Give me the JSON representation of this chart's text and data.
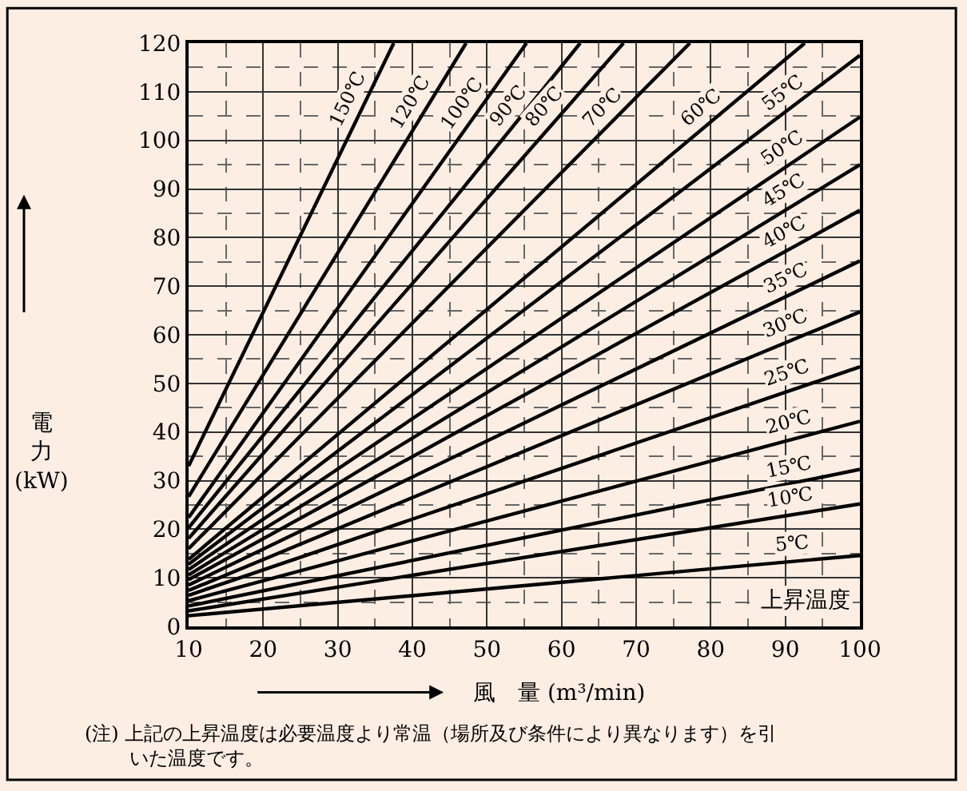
{
  "chart_data": {
    "type": "line",
    "xlabel": "風　量 (m³/min)",
    "ylabel": "電力(kW)",
    "legend_title": "上昇温度",
    "xlim": [
      10,
      100
    ],
    "ylim": [
      0,
      120
    ],
    "xticks": [
      10,
      20,
      30,
      40,
      50,
      60,
      70,
      80,
      90,
      100
    ],
    "yticks": [
      0,
      10,
      20,
      30,
      40,
      50,
      60,
      70,
      80,
      90,
      100,
      110,
      120
    ],
    "grid": true,
    "legend": false,
    "marker": "none",
    "line_style": "solid",
    "annotations": [
      "(注) 上記の上昇温度は必要温度より常温（場所及び条件により異なります）を引いた温度です。"
    ],
    "series": [
      {
        "name": "5℃",
        "color": "#000000",
        "x": [
          10,
          100
        ],
        "values": [
          2.2,
          14.6
        ]
      },
      {
        "name": "10℃",
        "color": "#000000",
        "x": [
          10,
          100
        ],
        "values": [
          3.2,
          25.2
        ]
      },
      {
        "name": "15℃",
        "color": "#000000",
        "x": [
          10,
          100
        ],
        "values": [
          4.2,
          32.3
        ]
      },
      {
        "name": "20℃",
        "color": "#000000",
        "x": [
          10,
          100
        ],
        "values": [
          5.3,
          42.2
        ]
      },
      {
        "name": "25℃",
        "color": "#000000",
        "x": [
          10,
          100
        ],
        "values": [
          6.4,
          53.4
        ]
      },
      {
        "name": "30℃",
        "color": "#000000",
        "x": [
          10,
          100
        ],
        "values": [
          7.4,
          64.7
        ]
      },
      {
        "name": "35℃",
        "color": "#000000",
        "x": [
          10,
          100
        ],
        "values": [
          8.5,
          75.2
        ]
      },
      {
        "name": "40℃",
        "color": "#000000",
        "x": [
          10,
          100
        ],
        "values": [
          9.6,
          85.6
        ]
      },
      {
        "name": "45℃",
        "color": "#000000",
        "x": [
          10,
          100
        ],
        "values": [
          10.6,
          95
        ]
      },
      {
        "name": "50℃",
        "color": "#000000",
        "x": [
          10,
          100
        ],
        "values": [
          11.7,
          104.8
        ]
      },
      {
        "name": "55℃",
        "color": "#000000",
        "x": [
          10,
          100
        ],
        "values": [
          12.8,
          117.5
        ]
      },
      {
        "name": "60℃",
        "color": "#000000",
        "x": [
          10,
          92.6
        ],
        "values": [
          13.8,
          120
        ]
      },
      {
        "name": "70℃",
        "color": "#000000",
        "x": [
          10,
          77.2
        ],
        "values": [
          16,
          120
        ]
      },
      {
        "name": "80℃",
        "color": "#000000",
        "x": [
          10,
          68.3
        ],
        "values": [
          18.1,
          120
        ]
      },
      {
        "name": "90℃",
        "color": "#000000",
        "x": [
          10,
          62.5
        ],
        "values": [
          20.3,
          120
        ]
      },
      {
        "name": "100℃",
        "color": "#000000",
        "x": [
          10,
          55.3
        ],
        "values": [
          22.4,
          120
        ]
      },
      {
        "name": "120℃",
        "color": "#000000",
        "x": [
          10,
          47.2
        ],
        "values": [
          26.7,
          120
        ]
      },
      {
        "name": "150℃",
        "color": "#000000",
        "x": [
          10,
          37.5
        ],
        "values": [
          33,
          120
        ]
      }
    ]
  }
}
